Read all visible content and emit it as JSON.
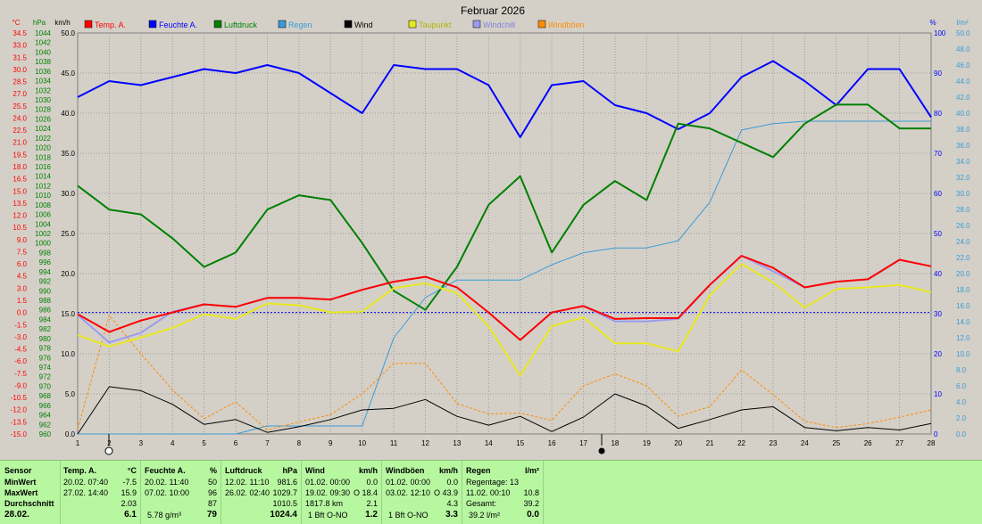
{
  "chart_data": {
    "type": "line",
    "title": "Februar 2026",
    "x": [
      1,
      2,
      3,
      4,
      5,
      6,
      7,
      8,
      9,
      10,
      11,
      12,
      13,
      14,
      15,
      16,
      17,
      18,
      19,
      20,
      21,
      22,
      23,
      24,
      25,
      26,
      27,
      28
    ],
    "x_ticks": [
      "1",
      "2",
      "3",
      "4",
      "5",
      "6",
      "7",
      "8",
      "9",
      "10",
      "11",
      "12",
      "13",
      "14",
      "15",
      "16",
      "17",
      "18",
      "19",
      "20",
      "21",
      "22",
      "23",
      "24",
      "25",
      "26",
      "27",
      "28"
    ],
    "axes": {
      "temp": {
        "unit": "°C",
        "min": -15.0,
        "max": 34.5,
        "ticks": [
          "-15.0",
          "-13.5",
          "-12.0",
          "-10.5",
          "-9.0",
          "-7.5",
          "-6.0",
          "-4.5",
          "-3.0",
          "-1.5",
          "0.0",
          "1.5",
          "3.0",
          "4.5",
          "6.0",
          "7.5",
          "9.0",
          "10.5",
          "12.0",
          "13.5",
          "15.0",
          "16.5",
          "18.0",
          "19.5",
          "21.0",
          "22.5",
          "24.0",
          "25.5",
          "27.0",
          "28.5",
          "30.0",
          "31.5",
          "33.0",
          "34.5"
        ]
      },
      "pressure": {
        "unit": "hPa",
        "min": 960,
        "max": 1044,
        "ticks": [
          "960",
          "962",
          "964",
          "966",
          "968",
          "970",
          "972",
          "974",
          "976",
          "978",
          "980",
          "982",
          "984",
          "986",
          "988",
          "990",
          "992",
          "994",
          "996",
          "998",
          "1000",
          "1002",
          "1004",
          "1006",
          "1008",
          "1010",
          "1012",
          "1014",
          "1016",
          "1018",
          "1020",
          "1022",
          "1024",
          "1026",
          "1028",
          "1030",
          "1032",
          "1034",
          "1036",
          "1038",
          "1040",
          "1042",
          "1044"
        ]
      },
      "wind": {
        "unit": "km/h",
        "min": 0.0,
        "max": 50.0,
        "ticks": [
          "0.0",
          "5.0",
          "10.0",
          "15.0",
          "20.0",
          "25.0",
          "30.0",
          "35.0",
          "40.0",
          "45.0",
          "50.0"
        ]
      },
      "humidity": {
        "unit": "%",
        "min": 0,
        "max": 100,
        "ticks": [
          "0",
          "10",
          "20",
          "30",
          "40",
          "50",
          "60",
          "70",
          "80",
          "90",
          "100"
        ]
      },
      "rain": {
        "unit": "l/m²",
        "min": 0.0,
        "max": 50.0,
        "ticks": [
          "0.0",
          "2.0",
          "4.0",
          "6.0",
          "8.0",
          "10.0",
          "12.0",
          "14.0",
          "16.0",
          "18.0",
          "20.0",
          "22.0",
          "24.0",
          "26.0",
          "28.0",
          "30.0",
          "32.0",
          "34.0",
          "36.0",
          "38.0",
          "40.0",
          "42.0",
          "44.0",
          "46.0",
          "48.0",
          "50.0"
        ]
      }
    },
    "series": [
      {
        "name": "Temp. A.",
        "color": "#ff0000",
        "axis": "temp",
        "width": 2,
        "values": [
          -0.2,
          -2.4,
          -1.0,
          0.0,
          1.0,
          0.7,
          1.8,
          1.8,
          1.6,
          2.8,
          3.8,
          4.4,
          3.1,
          0.0,
          -3.4,
          0.0,
          0.8,
          -0.8,
          -0.7,
          -0.7,
          3.4,
          7.0,
          5.5,
          3.1,
          3.8,
          4.1,
          6.5,
          5.7
        ]
      },
      {
        "name": "Feuchte A.",
        "color": "#0000ff",
        "axis": "humidity",
        "width": 2,
        "values": [
          84,
          88,
          87,
          89,
          91,
          90,
          92,
          90,
          85,
          80,
          92,
          91,
          91,
          87,
          74,
          87,
          88,
          82,
          80,
          76,
          80,
          89,
          93,
          88,
          82,
          91,
          91,
          79
        ]
      },
      {
        "name": "Luftdruck",
        "color": "#008000",
        "axis": "pressure",
        "width": 2,
        "values": [
          1012,
          1007,
          1006,
          1001,
          995,
          998,
          1007,
          1010,
          1009,
          1000,
          990,
          986,
          995,
          1008,
          1014,
          998,
          1008,
          1013,
          1009,
          1025,
          1024,
          1021,
          1018,
          1025,
          1029,
          1029,
          1024,
          1024
        ]
      },
      {
        "name": "Regen",
        "color": "#3a9bd5",
        "axis": "rain",
        "width": 1,
        "values": [
          0,
          0,
          0,
          0,
          0,
          0,
          1.0,
          1.0,
          1.0,
          1.0,
          12.0,
          17.0,
          19.2,
          19.2,
          19.2,
          21.1,
          22.6,
          23.2,
          23.2,
          24.1,
          28.9,
          37.9,
          38.7,
          39.0,
          39.0,
          39.0,
          39.0,
          39.0
        ]
      },
      {
        "name": "Wind",
        "color": "#000000",
        "axis": "wind",
        "width": 1,
        "values": [
          0.0,
          5.9,
          5.4,
          3.7,
          1.2,
          1.8,
          0.2,
          0.9,
          1.8,
          3.0,
          3.2,
          4.3,
          2.2,
          1.1,
          2.2,
          0.3,
          2.1,
          5.0,
          3.5,
          0.7,
          1.8,
          3.0,
          3.4,
          0.8,
          0.4,
          0.8,
          0.5,
          1.3
        ]
      },
      {
        "name": "Taupunkt",
        "color": "#e8e820",
        "axis": "temp",
        "width": 2,
        "values": [
          -2.8,
          -4.2,
          -3.1,
          -1.9,
          -0.2,
          -0.8,
          1.1,
          0.9,
          0.0,
          0.1,
          3.0,
          3.6,
          2.4,
          -1.7,
          -7.8,
          -1.7,
          -0.6,
          -3.8,
          -3.8,
          -4.8,
          2.1,
          6.0,
          3.7,
          0.6,
          2.9,
          3.1,
          3.4,
          2.5
        ]
      },
      {
        "name": "Windchill",
        "color": "#9b9bf0",
        "axis": "temp",
        "width": 2,
        "values": [
          -0.3,
          -3.7,
          -2.5,
          0.1,
          1.0,
          0.7,
          1.8,
          1.8,
          1.6,
          2.8,
          3.8,
          4.4,
          3.1,
          0.0,
          -3.4,
          0.0,
          0.8,
          -1.1,
          -1.1,
          -0.8,
          3.4,
          7.0,
          5.1,
          3.1,
          3.8,
          4.1,
          6.5,
          5.7
        ]
      },
      {
        "name": "Windböen",
        "color": "#ff8c00",
        "axis": "wind",
        "width": 1,
        "dashed": true,
        "values": [
          0.6,
          14.8,
          10.0,
          5.5,
          1.9,
          4.0,
          0.5,
          1.5,
          2.4,
          5.0,
          8.8,
          8.8,
          3.8,
          2.5,
          2.6,
          1.7,
          6.0,
          7.5,
          6.0,
          2.2,
          3.4,
          8.0,
          4.9,
          1.6,
          0.8,
          1.3,
          2.1,
          3.0
        ]
      }
    ],
    "reference_line": {
      "axis": "temp",
      "value": 0.0,
      "color": "#0000ff"
    },
    "grid": true,
    "legend": "top"
  },
  "stats": {
    "sensor": {
      "header": "Sensor",
      "rows": [
        "MinWert",
        "MaxWert",
        "Durchschnitt",
        "28.02."
      ]
    },
    "temp": {
      "header": "Temp. A.",
      "unit": "°C",
      "min_time": "20.02.  07:40",
      "min_value": "-7.5",
      "max_time": "27.02.  14:40",
      "max_value": "15.9",
      "avg_value": "2.03",
      "day_value": "6.1"
    },
    "feuchte": {
      "header": "Feuchte A.",
      "unit": "%",
      "min_time": "20.02.  11:40",
      "min_value": "50",
      "max_time": "07.02.  10:00",
      "max_value": "96",
      "avg_value": "87",
      "day_extra": "5.78 g/m³",
      "day_value": "79"
    },
    "luftdruck": {
      "header": "Luftdruck",
      "unit": "hPa",
      "min_time": "12.02.  11:10",
      "min_value": "981.6",
      "max_time": "26.02.  02:40",
      "max_value": "1029.7",
      "avg_value": "1010.5",
      "day_value": "1024.4"
    },
    "wind": {
      "header": "Wind",
      "unit": "km/h",
      "min_time": "01.02.  00:00",
      "min_value": "0.0",
      "max_time": "19.02.  09:30",
      "max_value": "O 18.4",
      "avg_extra": "1817.8 km",
      "avg_value": "2.1",
      "day_extra": "1 Bft O-NO",
      "day_value": "1.2"
    },
    "boeen": {
      "header": "Windböen",
      "unit": "km/h",
      "min_time": "01.02.  00:00",
      "min_value": "0.0",
      "max_time": "03.02.  12:10",
      "max_value": "O 43.9",
      "avg_value": "4.3",
      "day_extra": "1 Bft O-NO",
      "day_value": "3.3"
    },
    "regen": {
      "header": "Regen",
      "unit": "l/m²",
      "r1_label": "Regentage: 13",
      "r2_label": "11.02.  00:10",
      "r2_value": "10.8",
      "r3_label": "Gesamt:",
      "r3_value": "39.2",
      "r4_label": "39.2 l/m²",
      "r4_value": "0.0"
    }
  }
}
